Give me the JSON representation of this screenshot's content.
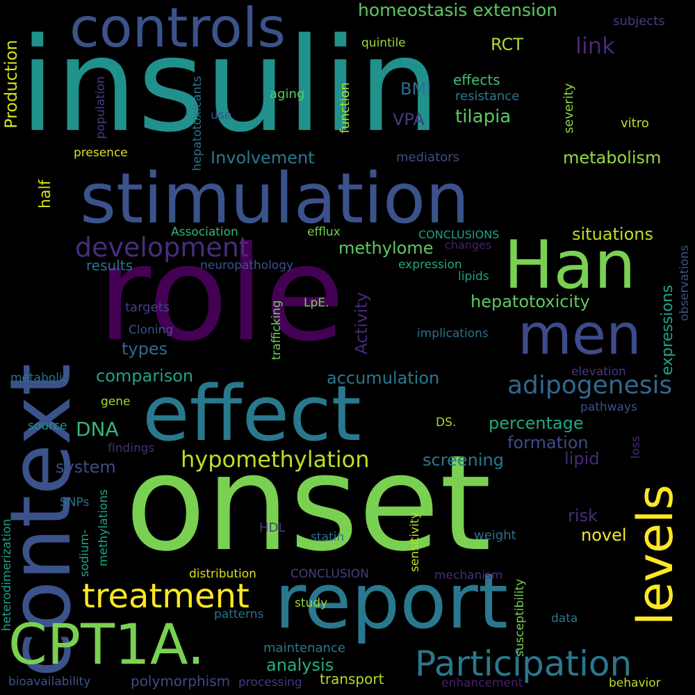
{
  "words": [
    {
      "text": "insulin",
      "color": "#21918c"
    },
    {
      "text": "role",
      "color": "#440154"
    },
    {
      "text": "onset",
      "color": "#7ad151"
    },
    {
      "text": "context",
      "color": "#3b528b"
    },
    {
      "text": "stimulation",
      "color": "#3b528b"
    },
    {
      "text": "effect",
      "color": "#2a788e"
    },
    {
      "text": "report",
      "color": "#2a788e"
    },
    {
      "text": "Han",
      "color": "#7ad151"
    },
    {
      "text": "men",
      "color": "#3e4a89"
    },
    {
      "text": "controls",
      "color": "#3b528b"
    },
    {
      "text": "CPT1A.",
      "color": "#7ad151"
    },
    {
      "text": "levels",
      "color": "#fde725"
    },
    {
      "text": "treatment",
      "color": "#fde725"
    },
    {
      "text": "Participation",
      "color": "#2a788e"
    },
    {
      "text": "development",
      "color": "#472d7b"
    },
    {
      "text": "adipogenesis",
      "color": "#31688e"
    },
    {
      "text": "hypomethylation",
      "color": "#bddf26"
    },
    {
      "text": "homeostasis extension",
      "color": "#5ec962"
    },
    {
      "text": "link",
      "color": "#482878"
    },
    {
      "text": "Production",
      "color": "#d2e21b"
    },
    {
      "text": "metabolism",
      "color": "#95d840"
    },
    {
      "text": "Involvement",
      "color": "#2a788e"
    },
    {
      "text": "situations",
      "color": "#bddf26"
    },
    {
      "text": "tilapia",
      "color": "#5ec962"
    },
    {
      "text": "hepatotoxicity",
      "color": "#5ec962"
    },
    {
      "text": "methylome",
      "color": "#5ec962"
    },
    {
      "text": "accumulation",
      "color": "#2a788e"
    },
    {
      "text": "comparison",
      "color": "#20a486"
    },
    {
      "text": "percentage",
      "color": "#22a884"
    },
    {
      "text": "formation",
      "color": "#3e4a89"
    },
    {
      "text": "screening",
      "color": "#2a788e"
    },
    {
      "text": "lipid",
      "color": "#482878"
    },
    {
      "text": "analysis",
      "color": "#29af7f"
    },
    {
      "text": "polymorphism",
      "color": "#3e4a89"
    },
    {
      "text": "transport",
      "color": "#b5de2b"
    },
    {
      "text": "expressions",
      "color": "#20a486"
    },
    {
      "text": "Activity",
      "color": "#482878"
    },
    {
      "text": "DNA",
      "color": "#35b779"
    },
    {
      "text": "system",
      "color": "#3e4a89"
    },
    {
      "text": "types",
      "color": "#31688e"
    },
    {
      "text": "results",
      "color": "#2c728e"
    },
    {
      "text": "half",
      "color": "#d2e21b"
    },
    {
      "text": "RCT",
      "color": "#addc30"
    },
    {
      "text": "BMI",
      "color": "#2c728e"
    },
    {
      "text": "VPA",
      "color": "#443983"
    },
    {
      "text": "effects",
      "color": "#44bf70"
    },
    {
      "text": "resistance",
      "color": "#2a788e"
    },
    {
      "text": "aging",
      "color": "#5ec962"
    },
    {
      "text": "function",
      "color": "#b5de2b"
    },
    {
      "text": "severity",
      "color": "#8fd744"
    },
    {
      "text": "quintile",
      "color": "#9fda3a"
    },
    {
      "text": "subjects",
      "color": "#433e85"
    },
    {
      "text": "vitro",
      "color": "#c2df23"
    },
    {
      "text": "presence",
      "color": "#d8e219"
    },
    {
      "text": "use",
      "color": "#3b528b"
    },
    {
      "text": "population",
      "color": "#433e85"
    },
    {
      "text": "hepatotoxicants",
      "color": "#2c728e"
    },
    {
      "text": "mediators",
      "color": "#3e4a89"
    },
    {
      "text": "Association",
      "color": "#35b779"
    },
    {
      "text": "efflux",
      "color": "#75d054"
    },
    {
      "text": "CONCLUSIONS",
      "color": "#1fa188"
    },
    {
      "text": "changes",
      "color": "#481f70"
    },
    {
      "text": "observations",
      "color": "#3b528b"
    },
    {
      "text": "neuropathology",
      "color": "#3b528b"
    },
    {
      "text": "expression",
      "color": "#22a884"
    },
    {
      "text": "lipids",
      "color": "#1f9e89"
    },
    {
      "text": "targets",
      "color": "#414487"
    },
    {
      "text": "trafficking",
      "color": "#6ece58"
    },
    {
      "text": "LpE.",
      "color": "#7ad151"
    },
    {
      "text": "Cloning",
      "color": "#3b528b"
    },
    {
      "text": "implications",
      "color": "#2c728e"
    },
    {
      "text": "metabolic",
      "color": "#2c728e"
    },
    {
      "text": "elevation",
      "color": "#443983"
    },
    {
      "text": "gene",
      "color": "#9fda3a"
    },
    {
      "text": "pathways",
      "color": "#3b528b"
    },
    {
      "text": "source",
      "color": "#21918c"
    },
    {
      "text": "DS.",
      "color": "#a5db36"
    },
    {
      "text": "loss",
      "color": "#482878"
    },
    {
      "text": "findings",
      "color": "#472d7b"
    },
    {
      "text": "SNPs",
      "color": "#2c728e"
    },
    {
      "text": "methylations",
      "color": "#1fa188"
    },
    {
      "text": "sodium-",
      "color": "#1fa188"
    },
    {
      "text": "heterodimerization",
      "color": "#1fa188"
    },
    {
      "text": "risk",
      "color": "#472d7b"
    },
    {
      "text": "novel",
      "color": "#fde725"
    },
    {
      "text": "sensitivity",
      "color": "#bddf26"
    },
    {
      "text": "HDL",
      "color": "#443983"
    },
    {
      "text": "statin",
      "color": "#2c728e"
    },
    {
      "text": "weight",
      "color": "#2c728e"
    },
    {
      "text": "distribution",
      "color": "#d8e219"
    },
    {
      "text": "CONCLUSION",
      "color": "#433e85"
    },
    {
      "text": "mechanism",
      "color": "#472d7b"
    },
    {
      "text": "susceptibility",
      "color": "#75d054"
    },
    {
      "text": "study",
      "color": "#a0da39"
    },
    {
      "text": "patterns",
      "color": "#2c728e"
    },
    {
      "text": "data",
      "color": "#2a788e"
    },
    {
      "text": "maintenance",
      "color": "#2a788e"
    },
    {
      "text": "bioavailability",
      "color": "#3b528b"
    },
    {
      "text": "processing",
      "color": "#443983"
    },
    {
      "text": "enhancement",
      "color": "#481f70"
    },
    {
      "text": "behavior",
      "color": "#bddf26"
    }
  ]
}
